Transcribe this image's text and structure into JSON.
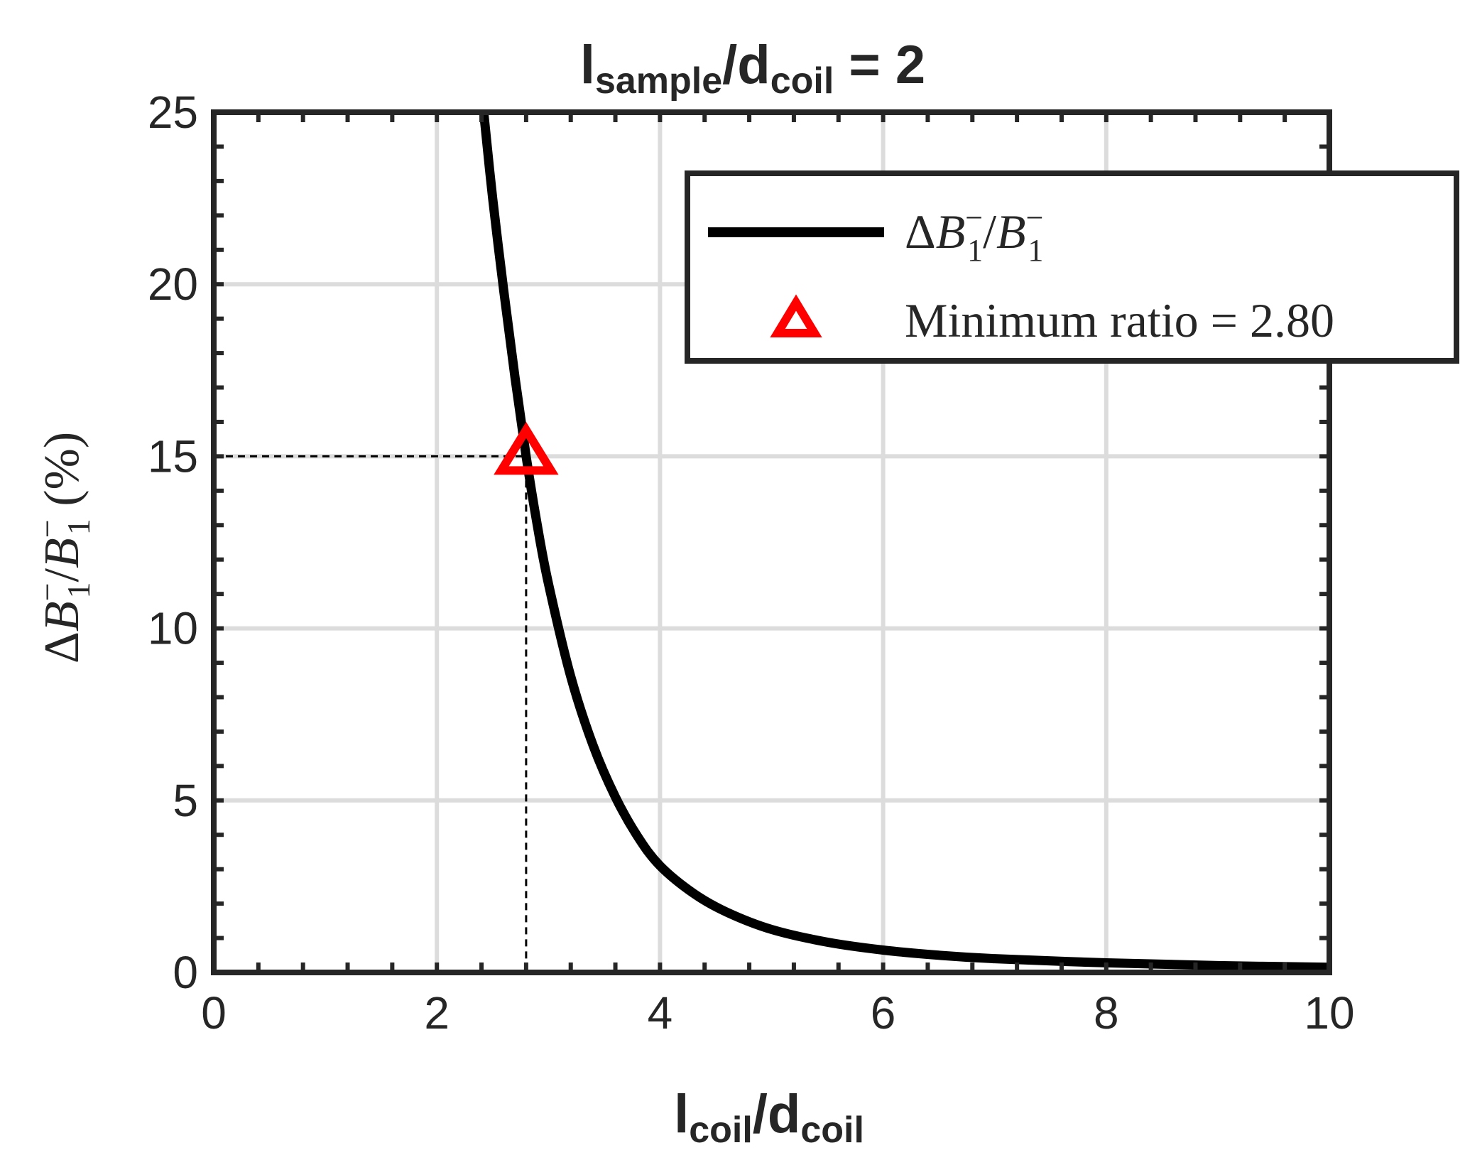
{
  "chart_data": {
    "type": "line",
    "title": {
      "main": "l",
      "sub": "sample",
      "mid": "/d",
      "sub2": "coil",
      "tail": " = 2"
    },
    "xlabel": {
      "main": "l",
      "sub": "coil",
      "mid": "/d",
      "sub2": "coil"
    },
    "ylabel": {
      "delta": "Δ",
      "b": "B",
      "sup": "−",
      "sub": "1",
      "slash": "/",
      "b2": "B",
      "sup2": "−",
      "sub2": "1",
      "unit": " (%)"
    },
    "xlim": [
      0,
      10
    ],
    "ylim": [
      0,
      25
    ],
    "xticks": [
      "0",
      "2",
      "4",
      "6",
      "8",
      "10"
    ],
    "yticks": [
      "0",
      "5",
      "10",
      "15",
      "20",
      "25"
    ],
    "grid": true,
    "legend_position": "top-right",
    "series": [
      {
        "name": {
          "delta": "Δ",
          "b": "B",
          "sup": "−",
          "sub": "1",
          "slash": "/",
          "b2": "B",
          "sup2": "−",
          "sub2": "1"
        },
        "color": "#000000",
        "x": [
          2.42,
          2.5,
          2.6,
          2.7,
          2.8,
          2.9,
          3.0,
          3.2,
          3.4,
          3.6,
          3.8,
          4.0,
          4.3,
          4.6,
          5.0,
          5.5,
          6.0,
          6.5,
          7.0,
          8.0,
          9.0,
          10.0
        ],
        "y": [
          25.0,
          22.5,
          19.8,
          17.3,
          15.0,
          13.0,
          11.3,
          8.6,
          6.6,
          5.1,
          3.95,
          3.1,
          2.3,
          1.75,
          1.25,
          0.88,
          0.65,
          0.5,
          0.4,
          0.28,
          0.2,
          0.15
        ]
      }
    ],
    "marker": {
      "label": "Minimum ratio = 2.80",
      "x": 2.8,
      "y": 15,
      "color": "#ff0000",
      "symbol": "triangle"
    },
    "reference_lines": {
      "x": 2.8,
      "y": 15,
      "style": "dashed"
    }
  }
}
